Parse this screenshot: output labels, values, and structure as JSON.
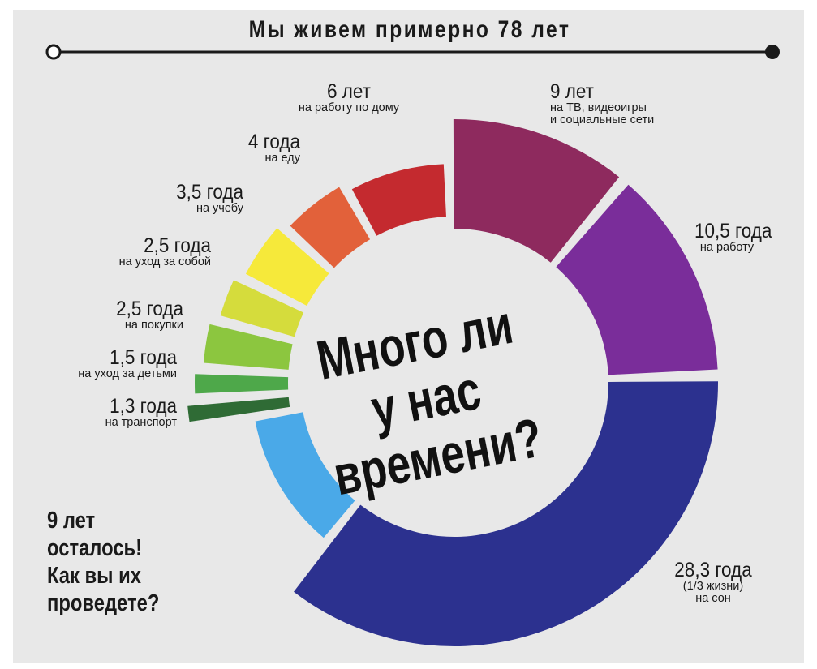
{
  "header": {
    "title": "Мы живем примерно 78 лет"
  },
  "center_question": [
    "Много ли",
    "у нас",
    "времени?"
  ],
  "remaining_note": [
    "9 лет",
    "осталось!",
    "Как вы их",
    "проведете?"
  ],
  "colors": {
    "tv": "#8e2a5e",
    "work": "#7a2d9a",
    "sleep": "#2c318f",
    "remaining": "#4aa9e8",
    "transport": "#2f6b35",
    "childcare": "#4ea84a",
    "shopping": "#8cc63f",
    "selfcare": "#d5dc3c",
    "study": "#f6e93a",
    "food": "#e2613a",
    "housework": "#c42a2f"
  },
  "chart_data": {
    "type": "pie",
    "title": "Мы живем примерно 78 лет",
    "unit": "лет",
    "slices": [
      {
        "key": "tv",
        "value": 9,
        "value_label": "9 лет",
        "desc": [
          "на ТВ, видеоигры",
          "и социальные сети"
        ]
      },
      {
        "key": "work",
        "value": 10.5,
        "value_label": "10,5 года",
        "desc": [
          "на работу"
        ]
      },
      {
        "key": "sleep",
        "value": 28.3,
        "value_label": "28,3 года",
        "desc": [
          "(1/3 жизни)",
          "на сон"
        ]
      },
      {
        "key": "remaining",
        "value": 9,
        "value_label": "",
        "desc": []
      },
      {
        "key": "transport",
        "value": 1.3,
        "value_label": "1,3 года",
        "desc": [
          "на транспорт"
        ]
      },
      {
        "key": "childcare",
        "value": 1.5,
        "value_label": "1,5 года",
        "desc": [
          "на уход за детьми"
        ]
      },
      {
        "key": "shopping",
        "value": 2.5,
        "value_label": "2,5 года",
        "desc": [
          "на покупки"
        ]
      },
      {
        "key": "selfcare",
        "value": 2.5,
        "value_label": "2,5 года",
        "desc": [
          "на уход за собой"
        ]
      },
      {
        "key": "study",
        "value": 3.5,
        "value_label": "3,5 года",
        "desc": [
          "на учебу"
        ]
      },
      {
        "key": "food",
        "value": 4,
        "value_label": "4 года",
        "desc": [
          "на еду"
        ]
      },
      {
        "key": "housework",
        "value": 6,
        "value_label": "6 лет",
        "desc": [
          "на работу по дому"
        ]
      }
    ]
  }
}
